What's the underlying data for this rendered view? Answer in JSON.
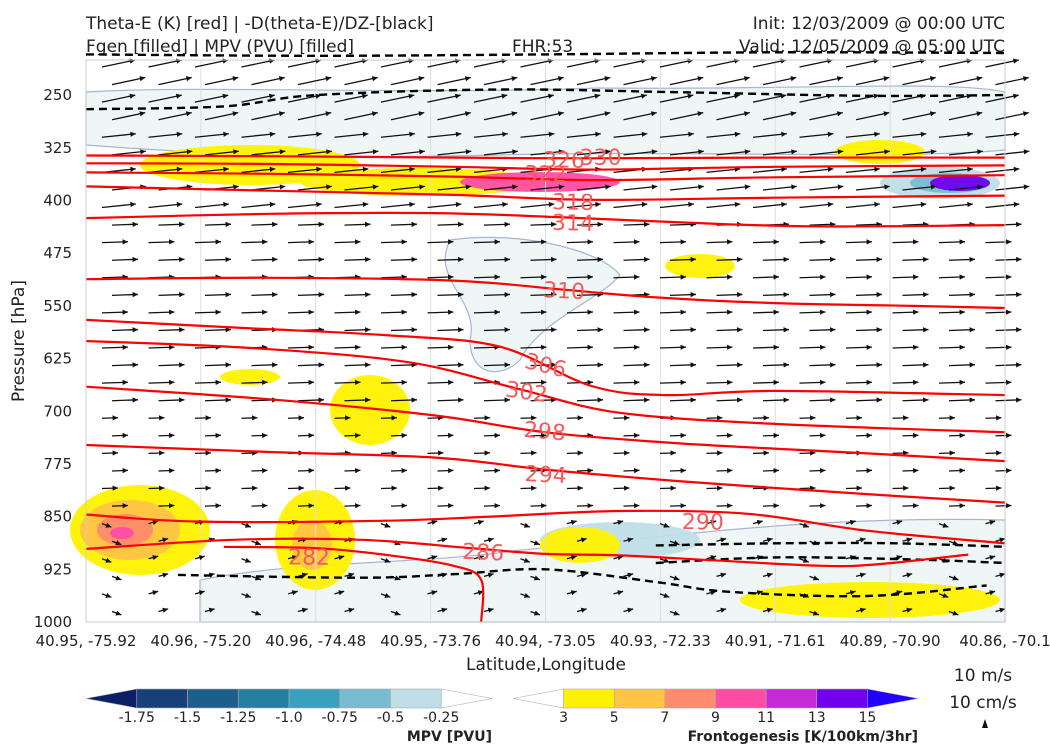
{
  "header": {
    "title_line1": "Theta-E (K) [red] | -D(theta-E)/DZ-[black]",
    "title_line2": "Fgen [filled] | MPV (PVU) [filled]",
    "fhr": "FHR:53",
    "init": "Init: 12/03/2009 @ 00:00 UTC",
    "valid": "Valid: 12/05/2009 @ 05:00 UTC"
  },
  "chart_data": {
    "type": "contour cross-section",
    "xlabel": "Latitude,Longitude",
    "ylabel": "Pressure [hPa]",
    "ylim": [
      1000,
      200
    ],
    "yticks": [
      250,
      325,
      400,
      475,
      550,
      625,
      700,
      775,
      850,
      925,
      1000
    ],
    "xticks": [
      "40.95, -75.92",
      "40.96, -75.20",
      "40.96, -74.48",
      "40.95, -73.76",
      "40.94, -73.05",
      "40.93, -72.33",
      "40.91, -71.61",
      "40.89, -70.90",
      "40.86, -70.1"
    ],
    "theta_e_contours": [
      {
        "label": "330",
        "points": [
          [
            0,
            336
          ],
          [
            0.2,
            337
          ],
          [
            0.4,
            339
          ],
          [
            0.55,
            340
          ],
          [
            0.75,
            339
          ],
          [
            1,
            339
          ]
        ]
      },
      {
        "label": "326",
        "points": [
          [
            0,
            347
          ],
          [
            0.2,
            348
          ],
          [
            0.4,
            352
          ],
          [
            0.55,
            356
          ],
          [
            0.75,
            352
          ],
          [
            1,
            350
          ]
        ]
      },
      {
        "label": "322",
        "points": [
          [
            0,
            360
          ],
          [
            0.2,
            362
          ],
          [
            0.4,
            366
          ],
          [
            0.55,
            371
          ],
          [
            0.75,
            367
          ],
          [
            1,
            364
          ]
        ]
      },
      {
        "label": "318",
        "points": [
          [
            0,
            380
          ],
          [
            0.2,
            386
          ],
          [
            0.4,
            392
          ],
          [
            0.55,
            399
          ],
          [
            0.75,
            396
          ],
          [
            1,
            393
          ]
        ]
      },
      {
        "label": "314",
        "points": [
          [
            0,
            425
          ],
          [
            0.2,
            419
          ],
          [
            0.38,
            418
          ],
          [
            0.52,
            424
          ],
          [
            0.7,
            434
          ],
          [
            0.82,
            437
          ],
          [
            1,
            435
          ]
        ]
      },
      {
        "label": "310",
        "points": [
          [
            0,
            512
          ],
          [
            0.2,
            510
          ],
          [
            0.4,
            514
          ],
          [
            0.52,
            527
          ],
          [
            0.62,
            538
          ],
          [
            0.75,
            546
          ],
          [
            0.9,
            550
          ],
          [
            1,
            553
          ]
        ]
      },
      {
        "label": "306",
        "points": [
          [
            0,
            570
          ],
          [
            0.18,
            582
          ],
          [
            0.33,
            592
          ],
          [
            0.45,
            608
          ],
          [
            0.55,
            664
          ],
          [
            0.63,
            677
          ],
          [
            0.75,
            671
          ],
          [
            1,
            677
          ]
        ]
      },
      {
        "label": "302",
        "points": [
          [
            0,
            600
          ],
          [
            0.18,
            610
          ],
          [
            0.35,
            630
          ],
          [
            0.47,
            668
          ],
          [
            0.58,
            702
          ],
          [
            0.75,
            718
          ],
          [
            1,
            730
          ]
        ]
      },
      {
        "label": "298",
        "points": [
          [
            0,
            665
          ],
          [
            0.2,
            683
          ],
          [
            0.38,
            706
          ],
          [
            0.5,
            730
          ],
          [
            0.65,
            746
          ],
          [
            0.85,
            760
          ],
          [
            1,
            771
          ]
        ]
      },
      {
        "label": "294",
        "points": [
          [
            0,
            748
          ],
          [
            0.2,
            758
          ],
          [
            0.38,
            766
          ],
          [
            0.5,
            783
          ],
          [
            0.65,
            800
          ],
          [
            0.85,
            818
          ],
          [
            1,
            830
          ]
        ]
      },
      {
        "label": "290",
        "points": [
          [
            0,
            847
          ],
          [
            0.12,
            857
          ],
          [
            0.32,
            856
          ],
          [
            0.44,
            850
          ],
          [
            0.58,
            842
          ],
          [
            0.72,
            846
          ],
          [
            0.85,
            870
          ],
          [
            1,
            888
          ]
        ]
      },
      {
        "label": "286",
        "points": [
          [
            0,
            896
          ],
          [
            0.16,
            883
          ],
          [
            0.3,
            883
          ],
          [
            0.42,
            895
          ],
          [
            0.5,
            903
          ],
          [
            0.58,
            905
          ],
          [
            0.68,
            912
          ],
          [
            0.8,
            920
          ],
          [
            0.86,
            918
          ],
          [
            0.96,
            904
          ]
        ]
      },
      {
        "label": "282",
        "points": [
          [
            0.15,
            893
          ],
          [
            0.25,
            895
          ],
          [
            0.33,
            905
          ],
          [
            0.4,
            920
          ],
          [
            0.43,
            940
          ],
          [
            0.43,
            1000
          ]
        ]
      }
    ],
    "dthetae_dz_contours": [
      {
        "points": [
          [
            0,
            192
          ],
          [
            0.25,
            194
          ],
          [
            0.5,
            192
          ],
          [
            0.75,
            189
          ],
          [
            1,
            190
          ]
        ]
      },
      {
        "points": [
          [
            0,
            270
          ],
          [
            0.15,
            266
          ],
          [
            0.25,
            250
          ],
          [
            0.45,
            242
          ],
          [
            0.65,
            246
          ],
          [
            0.85,
            251
          ],
          [
            1,
            250
          ]
        ]
      },
      {
        "points": [
          [
            0.1,
            933
          ],
          [
            0.3,
            937
          ],
          [
            0.4,
            932
          ],
          [
            0.5,
            925
          ],
          [
            0.62,
            943
          ],
          [
            0.7,
            957
          ],
          [
            0.85,
            963
          ],
          [
            0.98,
            948
          ]
        ]
      },
      {
        "points": [
          [
            0.62,
            891
          ],
          [
            0.75,
            888
          ],
          [
            0.88,
            888
          ],
          [
            1,
            893
          ]
        ]
      },
      {
        "points": [
          [
            0.62,
            916
          ],
          [
            0.75,
            908
          ],
          [
            0.9,
            911
          ],
          [
            1,
            916
          ]
        ]
      }
    ],
    "wind_reference": [
      "10 m/s",
      "10 cm/s"
    ],
    "colorbar_mpv": {
      "label": "MPV [PVU]",
      "ticks": [
        "-1.75",
        "-1.5",
        "-1.25",
        "-1.0",
        "-0.75",
        "-0.5",
        "-0.25"
      ],
      "colors": [
        "#0b1f64",
        "#173f7a",
        "#1d5f8b",
        "#247f9f",
        "#3ba0bd",
        "#79bbd1",
        "#bfdee6",
        "#ffffff"
      ]
    },
    "colorbar_fgen": {
      "label": "Frontogenesis [K/100km/3hr]",
      "ticks": [
        "3",
        "5",
        "7",
        "9",
        "11",
        "13",
        "15"
      ],
      "colors": [
        "#ffffff",
        "#fff200",
        "#ffc444",
        "#ff8c6e",
        "#ff4da6",
        "#c42ad6",
        "#7200f0",
        "#2200ff"
      ]
    },
    "colors": {
      "theta_e": "#ff0000",
      "theta_e_label": "#f35c5c",
      "dthetae": "#000000",
      "mpv_outline": "#a8b4d4",
      "mpv_fill": "#eef6f6"
    }
  }
}
